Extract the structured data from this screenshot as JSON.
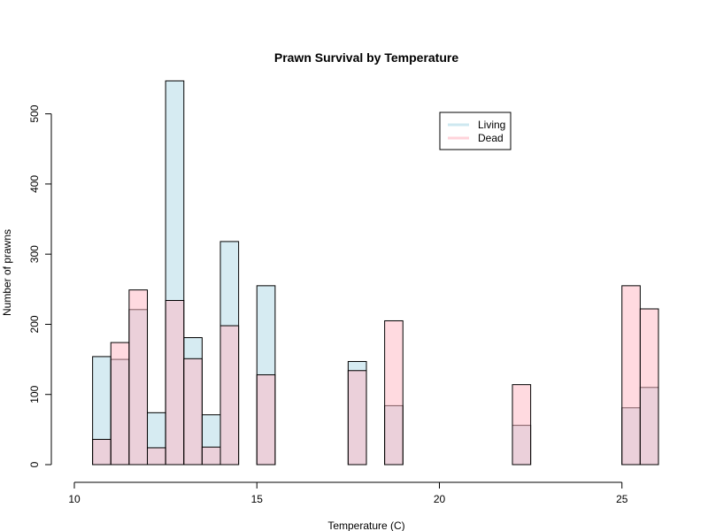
{
  "chart_data": {
    "type": "bar",
    "title": "Prawn Survival by Temperature",
    "xlabel": "Temperature (C)",
    "ylabel": "Number of prawns",
    "xlim": [
      10,
      26
    ],
    "ylim": [
      0,
      550
    ],
    "xticks": [
      10,
      15,
      20,
      25
    ],
    "yticks": [
      0,
      100,
      200,
      300,
      400,
      500
    ],
    "grid": false,
    "legend_position": "top-right",
    "bin_width": 0.5,
    "bin_starts": [
      10.0,
      10.5,
      11.0,
      11.5,
      12.0,
      12.5,
      13.0,
      13.5,
      14.0,
      14.5,
      15.0,
      15.5,
      16.0,
      16.5,
      17.0,
      17.5,
      18.0,
      18.5,
      19.0,
      19.5,
      20.0,
      20.5,
      21.0,
      21.5,
      22.0,
      22.5,
      23.0,
      23.5,
      24.0,
      24.5,
      25.0,
      25.5
    ],
    "series": [
      {
        "name": "Living",
        "color": "#add8e6",
        "values": [
          0,
          154,
          150,
          221,
          74,
          547,
          181,
          71,
          318,
          0,
          255,
          0,
          0,
          0,
          0,
          147,
          0,
          84,
          0,
          0,
          0,
          0,
          0,
          0,
          56,
          0,
          0,
          0,
          0,
          0,
          81,
          110
        ]
      },
      {
        "name": "Dead",
        "color": "#ffb6c1",
        "values": [
          0,
          36,
          174,
          249,
          24,
          234,
          151,
          25,
          198,
          0,
          128,
          0,
          0,
          0,
          0,
          134,
          0,
          205,
          0,
          0,
          0,
          0,
          0,
          0,
          114,
          0,
          0,
          0,
          0,
          0,
          255,
          222
        ]
      }
    ]
  }
}
